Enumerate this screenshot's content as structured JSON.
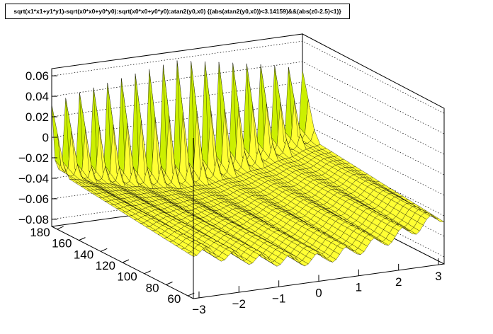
{
  "title": "sqrt(x1*x1+y1*y1)-sqrt(x0*x0+y0*y0):sqrt(x0*x0+y0*y0):atan2(y0,x0) {(abs(atan2(y0,x0))<3.14159)&&(abs(z0-2.5)<1)}",
  "chart_data": {
    "type": "surface",
    "x_axis": {
      "ticks": [
        "−3",
        "−2",
        "−1",
        "0",
        "1",
        "2",
        "3"
      ],
      "range": [
        -3.14159,
        3.14159
      ]
    },
    "y_axis": {
      "ticks": [
        "60",
        "80",
        "100",
        "120",
        "140",
        "160",
        "180"
      ],
      "range": [
        55,
        185
      ]
    },
    "z_axis": {
      "ticks": [
        "−0.08",
        "−0.06",
        "−0.04",
        "−0.02",
        "0",
        "0.02",
        "0.04",
        "0.06"
      ],
      "range": [
        -0.087,
        0.067
      ]
    },
    "grid": true,
    "surface": {
      "description_values": {
        "near_edge_peaks": 18,
        "peak_height_at_y_max": 0.058,
        "peak_height_at_y_min": 0.032,
        "trough_depth_center": -0.065,
        "trough_depth_edges": -0.04,
        "y_decay": 0.01
      }
    },
    "colors": {
      "low": "#ffff00",
      "mid": "#99ee00",
      "high": "#cc3300"
    }
  }
}
